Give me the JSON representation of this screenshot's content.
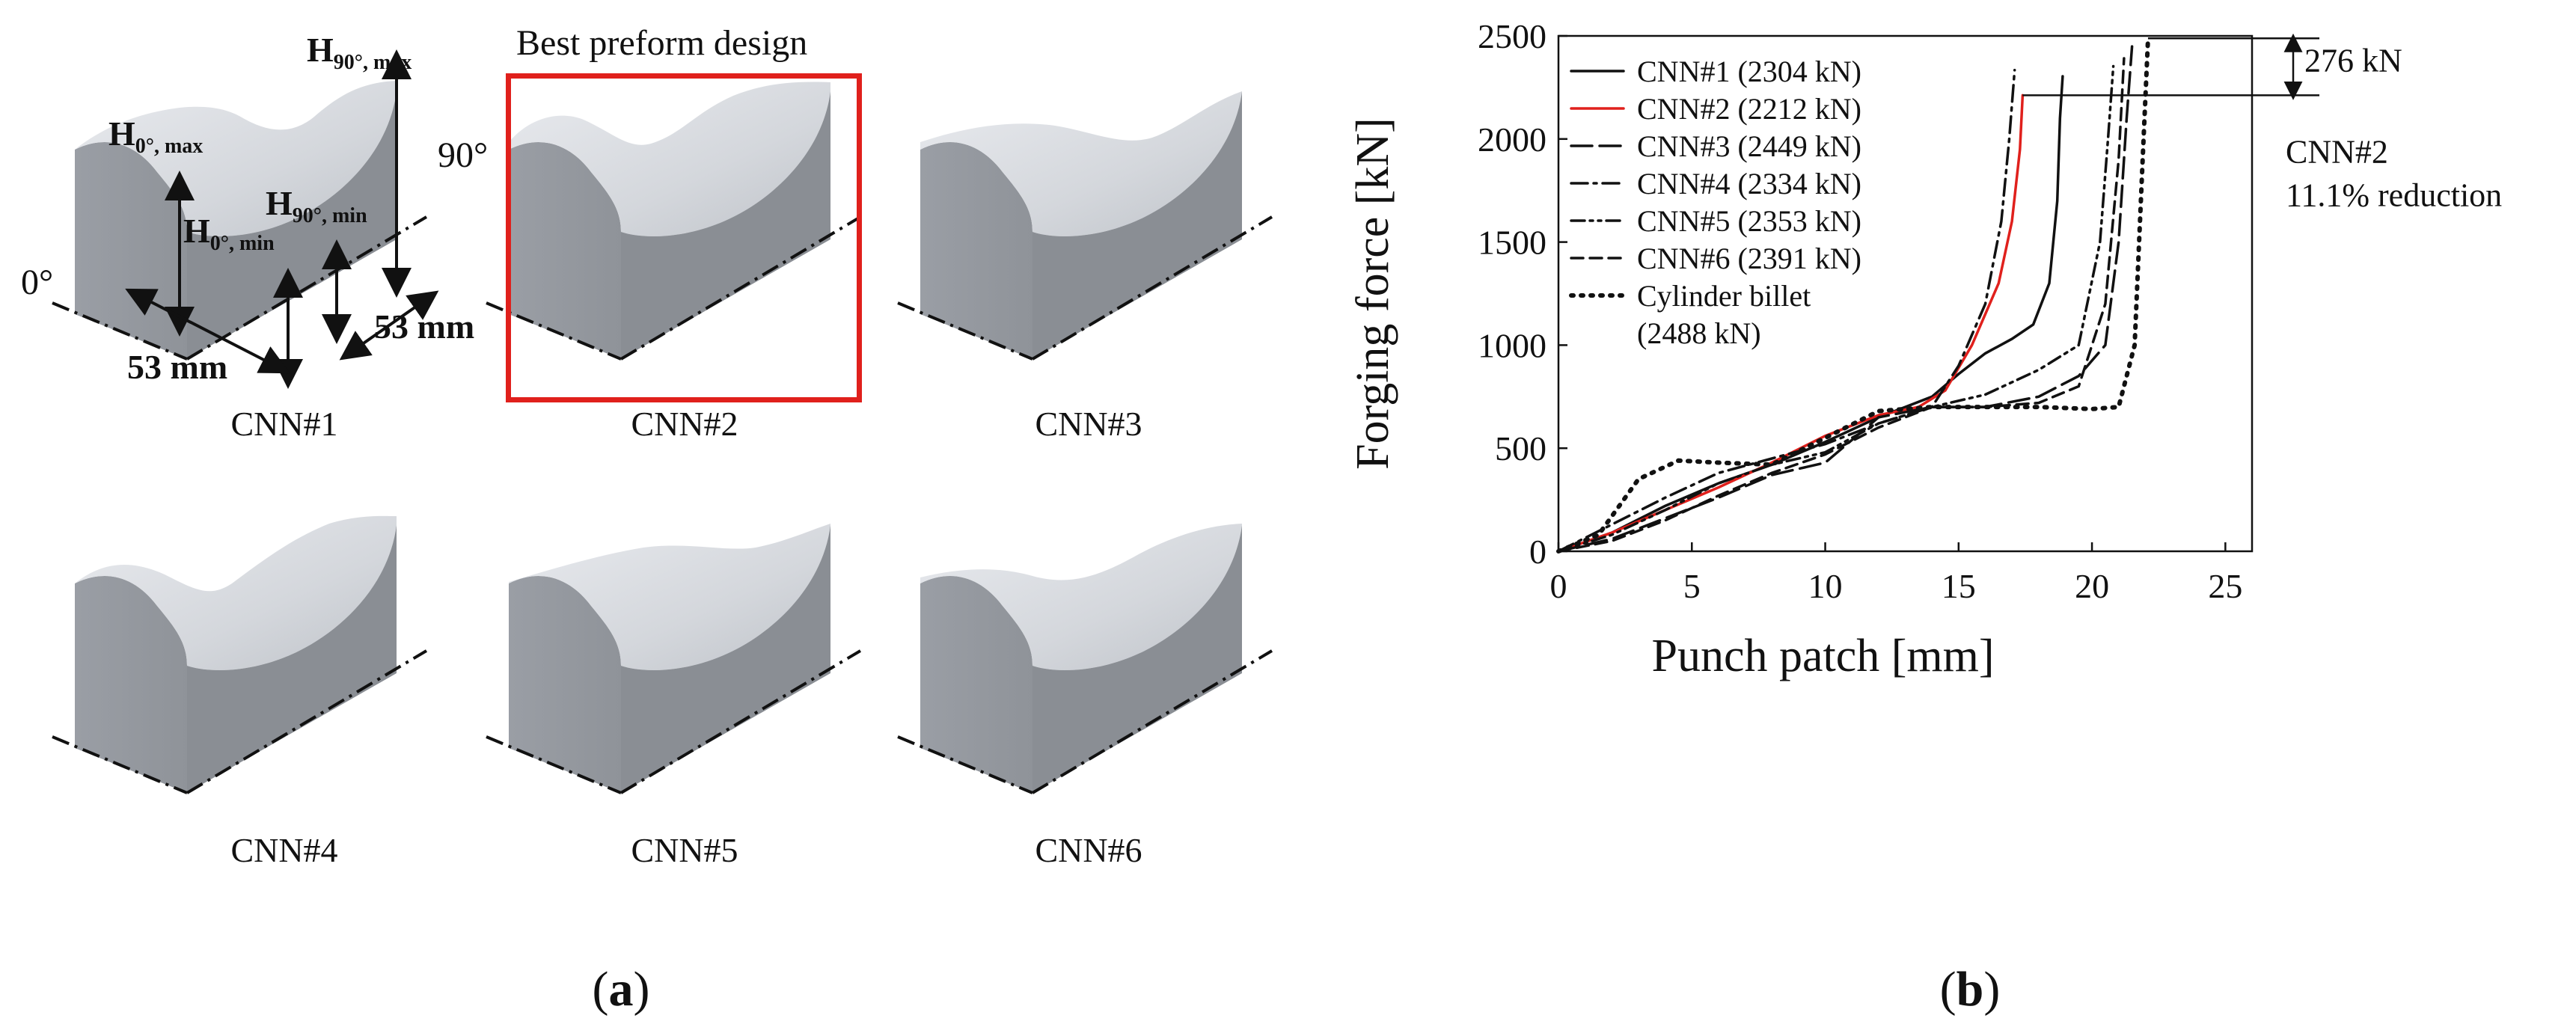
{
  "panel_a": {
    "label": "a",
    "best_title": "Best preform design",
    "captions": [
      "CNN#1",
      "CNN#2",
      "CNN#3",
      "CNN#4",
      "CNN#5",
      "CNN#6"
    ],
    "dims": {
      "h90max_main": "H",
      "h90max_sub": "90°, max",
      "h0max_main": "H",
      "h0max_sub": "0°, max",
      "h0min_main": "H",
      "h0min_sub": "0°, min",
      "h90min_main": "H",
      "h90min_sub": "90°, min",
      "length_0": "53 mm",
      "length_90": "53 mm",
      "angle_0": "0°",
      "angle_90": "90°"
    },
    "colors": {
      "highlight": "#e0201c",
      "solid": "#8f9399"
    }
  },
  "panel_b": {
    "label": "b",
    "annotation_delta": "276 kN",
    "annotation_line1": "CNN#2",
    "annotation_line2": "11.1% reduction"
  },
  "chart_data": {
    "type": "line",
    "xlabel": "Punch patch [mm]",
    "ylabel": "Forging force [kN]",
    "xlim": [
      0,
      26
    ],
    "ylim": [
      0,
      2500
    ],
    "xticks": [
      0,
      5,
      10,
      15,
      20,
      25
    ],
    "yticks": [
      0,
      500,
      1000,
      1500,
      2000,
      2500
    ],
    "grid": false,
    "legend_position": "top-left",
    "series": [
      {
        "name": "CNN#1 (2304 kN)",
        "color": "#111111",
        "dash": "solid",
        "x": [
          0,
          2,
          4,
          6,
          8,
          10,
          12,
          13,
          14,
          15,
          16,
          17,
          17.8,
          18.4,
          18.7,
          18.8,
          18.9
        ],
        "y": [
          0,
          90,
          220,
          330,
          420,
          530,
          650,
          700,
          750,
          860,
          960,
          1030,
          1100,
          1300,
          1700,
          2100,
          2304
        ]
      },
      {
        "name": "CNN#2 (2212 kN)",
        "color": "#e0201c",
        "dash": "solid",
        "x": [
          0,
          2,
          4,
          6,
          8,
          10,
          12,
          13.5,
          14.5,
          15.5,
          16.5,
          17,
          17.3,
          17.4
        ],
        "y": [
          0,
          90,
          200,
          310,
          430,
          560,
          660,
          700,
          780,
          1000,
          1300,
          1600,
          1950,
          2212
        ]
      },
      {
        "name": "CNN#3 (2449 kN)",
        "color": "#111111",
        "dash": "longdash",
        "x": [
          0,
          2,
          4,
          6,
          8,
          10,
          11,
          12,
          14,
          16,
          18,
          19.5,
          20.5,
          21,
          21.3,
          21.5
        ],
        "y": [
          0,
          60,
          160,
          260,
          370,
          430,
          540,
          650,
          700,
          700,
          750,
          850,
          1000,
          1500,
          2100,
          2449
        ]
      },
      {
        "name": "CNN#4 (2334 kN)",
        "color": "#111111",
        "dash": "dashdot",
        "x": [
          0,
          2,
          4,
          6,
          8,
          10,
          12,
          14,
          15,
          16,
          16.6,
          16.9,
          17.1
        ],
        "y": [
          0,
          130,
          260,
          380,
          450,
          520,
          620,
          700,
          900,
          1200,
          1600,
          2000,
          2334
        ]
      },
      {
        "name": "CNN#5 (2353 kN)",
        "color": "#111111",
        "dash": "dashdotdot",
        "x": [
          0,
          2,
          4,
          6,
          8,
          10,
          12,
          14,
          16,
          18,
          19.5,
          20.3,
          20.6,
          20.8
        ],
        "y": [
          0,
          80,
          200,
          330,
          420,
          480,
          620,
          700,
          760,
          880,
          1000,
          1500,
          2000,
          2353
        ]
      },
      {
        "name": "CNN#6 (2391 kN)",
        "color": "#111111",
        "dash": "dash",
        "x": [
          0,
          2,
          4,
          6,
          8,
          10,
          12,
          14,
          16,
          18,
          19.5,
          20.5,
          21,
          21.2
        ],
        "y": [
          0,
          50,
          150,
          270,
          380,
          470,
          600,
          700,
          700,
          720,
          800,
          1200,
          1900,
          2391
        ]
      },
      {
        "name": "Cylinder billet",
        "name2": "(2488 kN)",
        "color": "#111111",
        "dash": "dot",
        "x": [
          0,
          1.5,
          3,
          4.5,
          6,
          8,
          10,
          12,
          14,
          16,
          18,
          20,
          21,
          21.6,
          21.9,
          22.1
        ],
        "y": [
          0,
          80,
          350,
          440,
          430,
          420,
          550,
          680,
          700,
          700,
          700,
          690,
          700,
          1000,
          1900,
          2488
        ]
      }
    ]
  }
}
